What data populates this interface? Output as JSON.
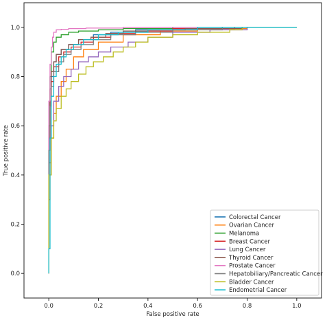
{
  "chart_data": {
    "type": "line",
    "title": "",
    "xlabel": "False positive rate",
    "ylabel": "True positive rate",
    "xlim": [
      -0.1,
      1.1
    ],
    "ylim": [
      -0.1,
      1.1
    ],
    "xticks": [
      0.0,
      0.2,
      0.4,
      0.6,
      0.8,
      1.0
    ],
    "yticks": [
      0.0,
      0.2,
      0.4,
      0.6,
      0.8,
      1.0
    ],
    "xtick_labels": [
      "0.0",
      "0.2",
      "0.4",
      "0.6",
      "0.8",
      "1.0"
    ],
    "ytick_labels": [
      "0.0",
      "0.2",
      "0.4",
      "0.6",
      "0.8",
      "1.0"
    ],
    "grid": false,
    "legend_position": "bottom-right",
    "series": [
      {
        "name": "Colorectal Cancer",
        "color": "#1f77b4",
        "x": [
          0,
          0,
          0.005,
          0.01,
          0.02,
          0.03,
          0.05,
          0.08,
          0.12,
          0.18,
          0.25,
          0.35,
          0.5,
          0.7,
          1.0
        ],
        "y": [
          0,
          0.45,
          0.7,
          0.8,
          0.86,
          0.89,
          0.91,
          0.93,
          0.95,
          0.97,
          0.98,
          0.99,
          0.995,
          1.0,
          1.0
        ]
      },
      {
        "name": "Ovarian Cancer",
        "color": "#ff7f0e",
        "x": [
          0,
          0,
          0.005,
          0.01,
          0.02,
          0.03,
          0.05,
          0.07,
          0.1,
          0.14,
          0.2,
          0.3,
          0.45,
          0.6,
          0.8,
          1.0
        ],
        "y": [
          0,
          0.3,
          0.45,
          0.55,
          0.65,
          0.72,
          0.78,
          0.83,
          0.88,
          0.91,
          0.94,
          0.97,
          0.985,
          0.995,
          1.0,
          1.0
        ]
      },
      {
        "name": "Melanoma",
        "color": "#2ca02c",
        "x": [
          0,
          0,
          0.005,
          0.01,
          0.02,
          0.03,
          0.05,
          0.08,
          0.12,
          0.2,
          0.3,
          0.5,
          1.0
        ],
        "y": [
          0,
          0.6,
          0.8,
          0.9,
          0.94,
          0.96,
          0.97,
          0.98,
          0.985,
          0.99,
          0.995,
          1.0,
          1.0
        ]
      },
      {
        "name": "Breast Cancer",
        "color": "#d62728",
        "x": [
          0,
          0,
          0.005,
          0.01,
          0.02,
          0.04,
          0.06,
          0.09,
          0.13,
          0.18,
          0.25,
          0.35,
          0.5,
          0.75,
          1.0
        ],
        "y": [
          0,
          0.5,
          0.7,
          0.78,
          0.84,
          0.88,
          0.9,
          0.92,
          0.94,
          0.96,
          0.975,
          0.985,
          0.995,
          1.0,
          1.0
        ]
      },
      {
        "name": "Lung Cancer",
        "color": "#9467bd",
        "x": [
          0,
          0,
          0.01,
          0.02,
          0.04,
          0.06,
          0.09,
          0.12,
          0.16,
          0.2,
          0.25,
          0.32,
          0.4,
          0.5,
          0.65,
          0.8,
          1.0
        ],
        "y": [
          0,
          0.4,
          0.6,
          0.7,
          0.76,
          0.8,
          0.83,
          0.86,
          0.88,
          0.9,
          0.92,
          0.94,
          0.96,
          0.98,
          0.99,
          1.0,
          1.0
        ]
      },
      {
        "name": "Thyroid Cancer",
        "color": "#8c564b",
        "x": [
          0,
          0,
          0.005,
          0.01,
          0.02,
          0.03,
          0.05,
          0.08,
          0.12,
          0.17,
          0.23,
          0.3,
          0.4,
          0.55,
          0.78,
          1.0
        ],
        "y": [
          0,
          0.55,
          0.75,
          0.82,
          0.86,
          0.89,
          0.91,
          0.93,
          0.95,
          0.96,
          0.975,
          0.985,
          0.99,
          0.995,
          1.0,
          1.0
        ]
      },
      {
        "name": "Prostate Cancer",
        "color": "#e377c2",
        "x": [
          0,
          0,
          0.005,
          0.01,
          0.015,
          0.02,
          0.03,
          0.05,
          0.08,
          0.15,
          0.3,
          0.5,
          1.0
        ],
        "y": [
          0,
          0.7,
          0.85,
          0.92,
          0.96,
          0.98,
          0.99,
          0.992,
          0.995,
          0.997,
          1.0,
          1.0,
          1.0
        ]
      },
      {
        "name": "Hepatobiliary/Pancreatic Cancer",
        "color": "#7f7f7f",
        "x": [
          0,
          0,
          0.005,
          0.01,
          0.02,
          0.04,
          0.06,
          0.09,
          0.13,
          0.18,
          0.25,
          0.35,
          0.5,
          0.7,
          1.0
        ],
        "y": [
          0,
          0.5,
          0.68,
          0.76,
          0.82,
          0.86,
          0.89,
          0.91,
          0.93,
          0.95,
          0.97,
          0.98,
          0.99,
          1.0,
          1.0
        ]
      },
      {
        "name": "Bladder Cancer",
        "color": "#bcbd22",
        "x": [
          0,
          0,
          0.01,
          0.02,
          0.03,
          0.05,
          0.07,
          0.09,
          0.12,
          0.15,
          0.18,
          0.22,
          0.26,
          0.3,
          0.35,
          0.4,
          0.5,
          0.6,
          0.72,
          0.73,
          0.78,
          1.0
        ],
        "y": [
          0,
          0.4,
          0.55,
          0.62,
          0.67,
          0.72,
          0.75,
          0.78,
          0.81,
          0.84,
          0.86,
          0.88,
          0.9,
          0.92,
          0.94,
          0.96,
          0.97,
          0.98,
          0.98,
          0.99,
          1.0,
          1.0
        ]
      },
      {
        "name": "Endometrial Cancer",
        "color": "#17becf",
        "x": [
          0,
          0,
          0.005,
          0.01,
          0.02,
          0.03,
          0.05,
          0.07,
          0.1,
          0.14,
          0.2,
          0.28,
          0.4,
          0.6,
          1.0
        ],
        "y": [
          0,
          0.1,
          0.55,
          0.72,
          0.8,
          0.85,
          0.88,
          0.91,
          0.93,
          0.95,
          0.97,
          0.98,
          0.99,
          1.0,
          1.0
        ]
      }
    ]
  }
}
